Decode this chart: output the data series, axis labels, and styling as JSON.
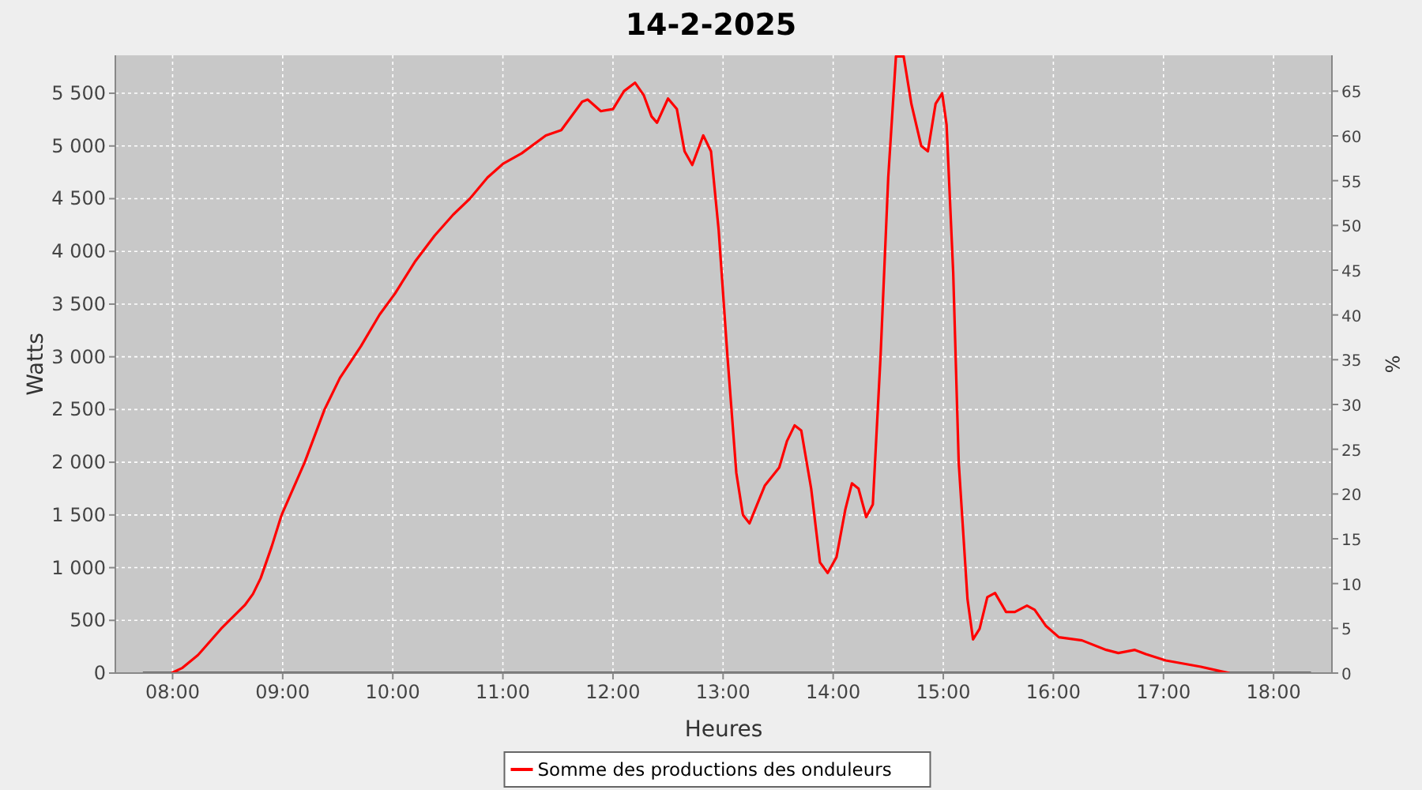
{
  "chart_data": {
    "type": "line",
    "title": "14-2-2025",
    "xlabel": "Heures",
    "ylabel": "Watts",
    "y2label": "%",
    "xlim": [
      7.48,
      18.53
    ],
    "ylim": [
      0,
      5860
    ],
    "y2lim": [
      0,
      69
    ],
    "xticks": [
      {
        "value": 8,
        "label": "08:00"
      },
      {
        "value": 9,
        "label": "09:00"
      },
      {
        "value": 10,
        "label": "10:00"
      },
      {
        "value": 11,
        "label": "11:00"
      },
      {
        "value": 12,
        "label": "12:00"
      },
      {
        "value": 13,
        "label": "13:00"
      },
      {
        "value": 14,
        "label": "14:00"
      },
      {
        "value": 15,
        "label": "15:00"
      },
      {
        "value": 16,
        "label": "16:00"
      },
      {
        "value": 17,
        "label": "17:00"
      },
      {
        "value": 18,
        "label": "18:00"
      }
    ],
    "yticks": [
      0,
      {
        "value": 500,
        "label": "500"
      },
      {
        "value": 1000,
        "label": "1 000"
      },
      {
        "value": 1500,
        "label": "1 500"
      },
      {
        "value": 2000,
        "label": "2 000"
      },
      {
        "value": 2500,
        "label": "2 500"
      },
      {
        "value": 3000,
        "label": "3 000"
      },
      {
        "value": 3500,
        "label": "3 500"
      },
      {
        "value": 4000,
        "label": "4 000"
      },
      {
        "value": 4500,
        "label": "4 500"
      },
      {
        "value": 5000,
        "label": "5 000"
      },
      {
        "value": 5500,
        "label": "5 500"
      }
    ],
    "y2ticks": [
      0,
      5,
      10,
      15,
      20,
      25,
      30,
      35,
      40,
      45,
      50,
      55,
      60,
      65
    ],
    "grid": true,
    "legend": "bottom",
    "series": [
      {
        "color": "#000000",
        "x": [
          7.73,
          18.34
        ],
        "values": [
          0,
          0
        ]
      },
      {
        "name": "Somme des productions des onduleurs",
        "color": "#ff0000",
        "x": [
          7.99,
          8.09,
          8.23,
          8.44,
          8.66,
          8.73,
          8.8,
          8.9,
          8.99,
          9.2,
          9.38,
          9.52,
          9.71,
          9.88,
          10.02,
          10.2,
          10.38,
          10.55,
          10.7,
          10.86,
          11.0,
          11.17,
          11.39,
          11.53,
          11.72,
          11.77,
          11.89,
          12.0,
          12.1,
          12.2,
          12.28,
          12.35,
          12.4,
          12.5,
          12.58,
          12.65,
          12.72,
          12.82,
          12.89,
          12.96,
          13.04,
          13.12,
          13.18,
          13.24,
          13.29,
          13.38,
          13.51,
          13.58,
          13.65,
          13.71,
          13.8,
          13.88,
          13.95,
          14.03,
          14.11,
          14.17,
          14.23,
          14.3,
          14.36,
          14.43,
          14.5,
          14.57,
          14.64,
          14.71,
          14.8,
          14.86,
          14.93,
          14.99,
          15.03,
          15.09,
          15.14,
          15.22,
          15.27,
          15.33,
          15.4,
          15.47,
          15.57,
          15.65,
          15.76,
          15.83,
          15.93,
          16.05,
          16.26,
          16.48,
          16.59,
          16.74,
          16.84,
          17.02,
          17.34,
          17.51,
          17.6
        ],
        "values": [
          0,
          50,
          170,
          420,
          650,
          750,
          900,
          1200,
          1500,
          2000,
          2500,
          2800,
          3100,
          3400,
          3600,
          3900,
          4150,
          4350,
          4500,
          4700,
          4830,
          4930,
          5100,
          5150,
          5420,
          5440,
          5330,
          5350,
          5520,
          5600,
          5480,
          5280,
          5220,
          5450,
          5350,
          4950,
          4820,
          5100,
          4950,
          4200,
          3000,
          1900,
          1500,
          1420,
          1550,
          1780,
          1950,
          2200,
          2350,
          2300,
          1750,
          1050,
          950,
          1100,
          1550,
          1800,
          1750,
          1480,
          1600,
          3000,
          4700,
          5850,
          5850,
          5400,
          5000,
          4950,
          5400,
          5500,
          5200,
          3800,
          2000,
          700,
          320,
          420,
          720,
          760,
          580,
          580,
          640,
          600,
          450,
          340,
          310,
          220,
          190,
          220,
          180,
          120,
          60,
          20,
          0
        ]
      }
    ]
  }
}
